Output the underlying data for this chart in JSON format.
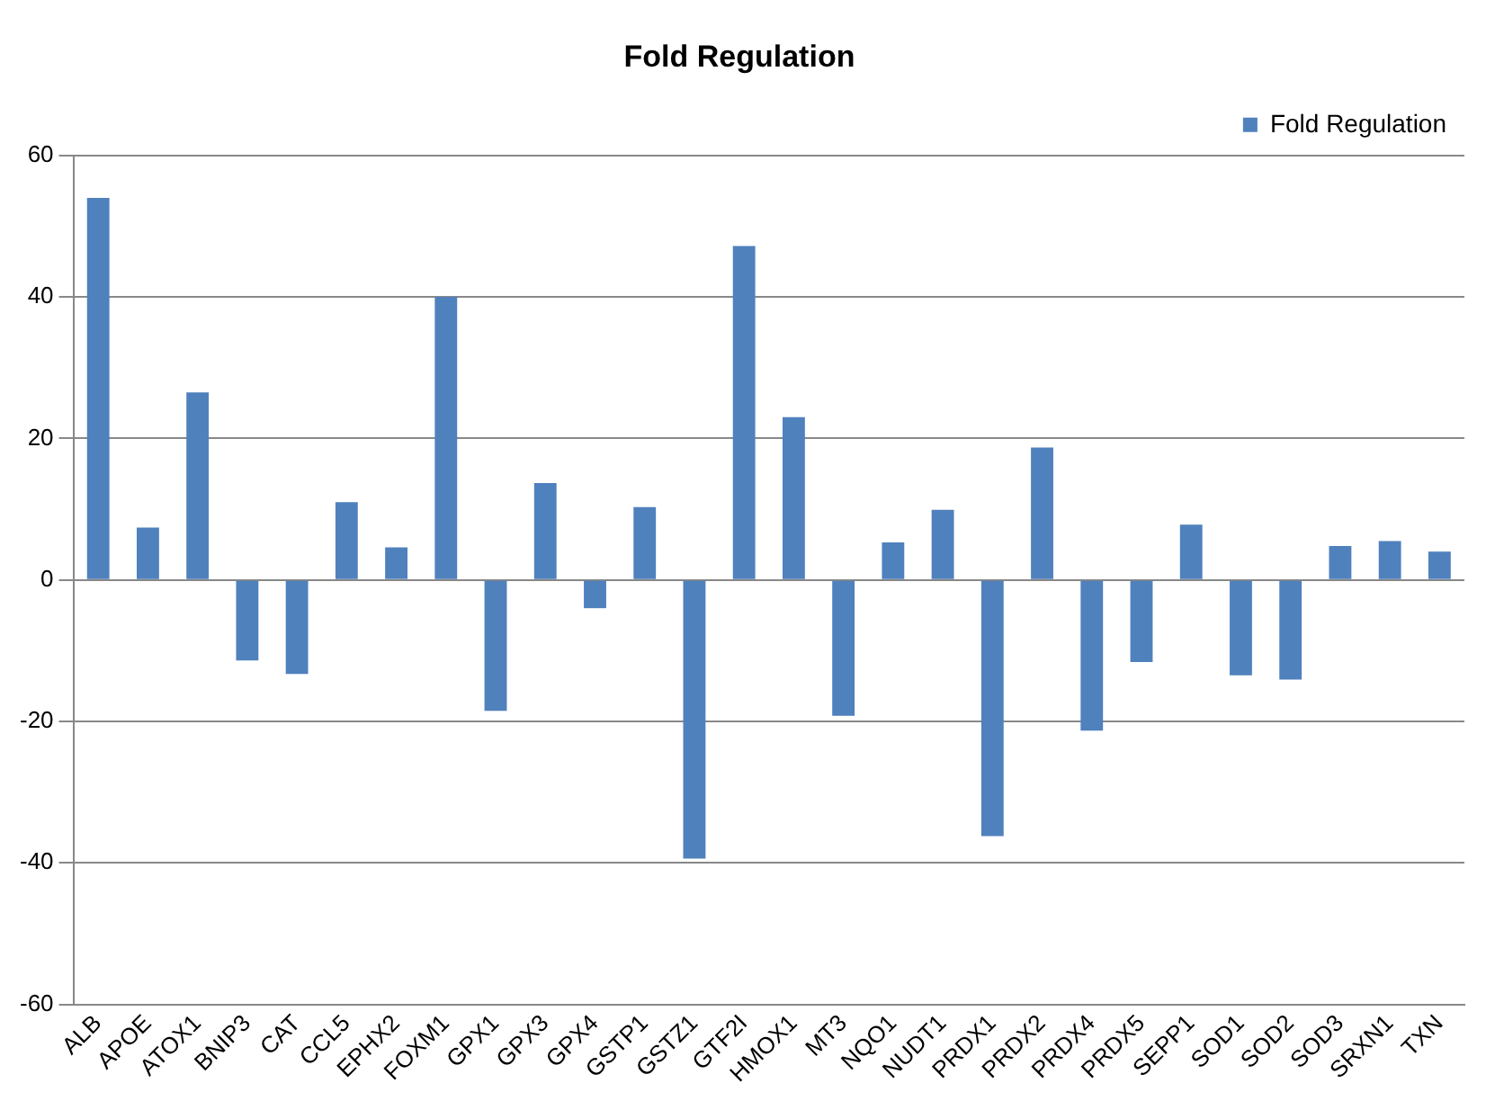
{
  "chart_data": {
    "type": "bar",
    "title": "Fold Regulation",
    "categories": [
      "ALB",
      "APOE",
      "ATOX1",
      "BNIP3",
      "CAT",
      "CCL5",
      "EPHX2",
      "FOXM1",
      "GPX1",
      "GPX3",
      "GPX4",
      "GSTP1",
      "GSTZ1",
      "GTF2I",
      "HMOX1",
      "MT3",
      "NQO1",
      "NUDT1",
      "PRDX1",
      "PRDX2",
      "PRDX4",
      "PRDX5",
      "SEPP1",
      "SOD1",
      "SOD2",
      "SOD3",
      "SRXN1",
      "TXN"
    ],
    "series": [
      {
        "name": "Fold Regulation",
        "color": "#4f81bd",
        "values": [
          54,
          7.4,
          26.5,
          -11.4,
          -13.3,
          11,
          4.6,
          40,
          -18.5,
          13.7,
          -4,
          10.3,
          -39.4,
          47.2,
          23,
          -19.2,
          5.3,
          9.9,
          -36.2,
          18.7,
          -21.3,
          -11.6,
          7.8,
          -13.5,
          -14.1,
          4.8,
          5.5,
          4
        ]
      }
    ],
    "ylim": [
      -60,
      60
    ],
    "yticks": [
      -60,
      -40,
      -20,
      0,
      20,
      40,
      60
    ],
    "grid": "y",
    "legend": "top right"
  }
}
